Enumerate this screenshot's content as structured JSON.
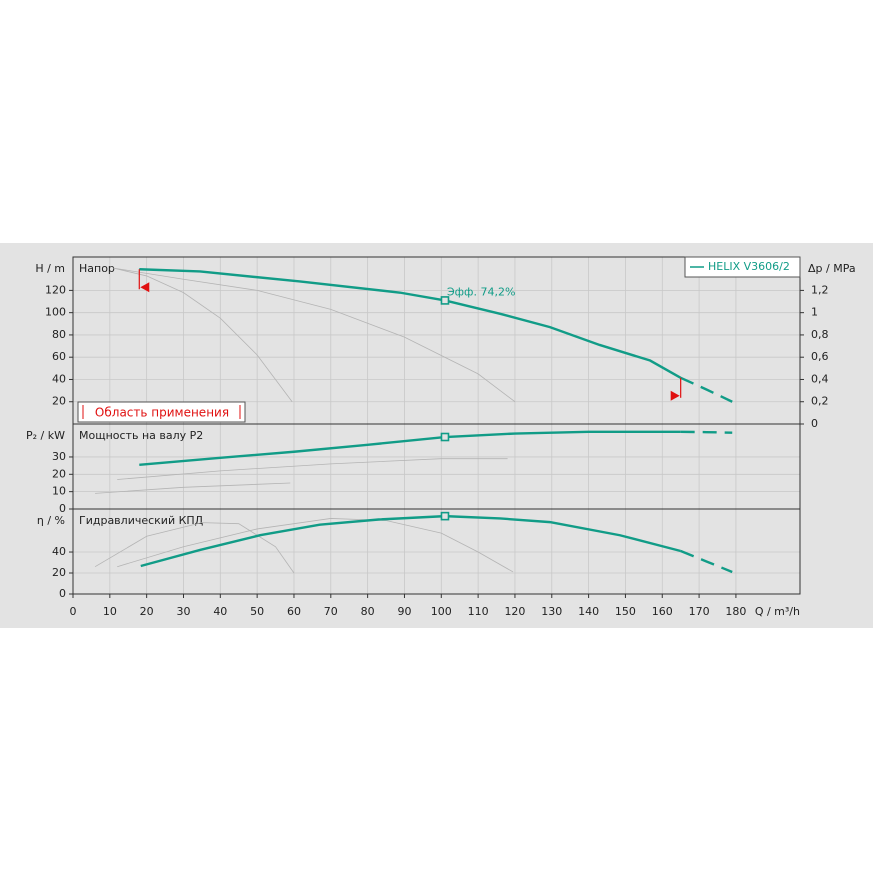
{
  "chart_data": [
    {
      "type": "line",
      "y_label": "H / m",
      "title": "Напор",
      "y2_label": "Δp / MPa",
      "ylim": [
        0,
        150
      ],
      "yticks": [
        20,
        40,
        60,
        80,
        100,
        120
      ],
      "y2lim": [
        0,
        1.5
      ],
      "y2ticks": [
        0,
        {
          "value": 0.2,
          "label": "0,2"
        },
        {
          "value": 0.4,
          "label": "0,4"
        },
        {
          "value": 0.6,
          "label": "0,6"
        },
        {
          "value": 0.8,
          "label": "0,8"
        },
        {
          "value": 1,
          "label": "1"
        },
        {
          "value": 1.2,
          "label": "1,2"
        }
      ],
      "legend": "top-right",
      "grid": true,
      "annotation": "Эфф.  74,2%",
      "duty_point": {
        "x": 101,
        "y": 111
      },
      "range": {
        "label": "Область применения",
        "limits": [
          18,
          165
        ]
      },
      "series": [
        {
          "color": "#b4b4b4",
          "style": "solid",
          "x": [
            11,
            30,
            50,
            70,
            90,
            110,
            120
          ],
          "values": [
            140,
            130,
            120,
            103,
            78,
            45,
            20
          ]
        },
        {
          "color": "#b4b4b4",
          "style": "solid",
          "x": [
            11,
            20,
            30,
            40,
            50,
            59.5
          ],
          "values": [
            140,
            133,
            118,
            95,
            62,
            20
          ]
        },
        {
          "name": "HELIX V3606/2",
          "color": "#119c87",
          "style": "solid",
          "x": [
            18,
            34.5,
            61.6,
            88.8,
            101,
            116,
            129.5,
            143,
            156.7,
            165
          ],
          "values": [
            139,
            137,
            128,
            118,
            111,
            99,
            87,
            71,
            57,
            41.5
          ]
        },
        {
          "color": "#119c87",
          "style": "dashed",
          "x": [
            165,
            172,
            179
          ],
          "values": [
            41.5,
            31,
            20
          ]
        }
      ]
    },
    {
      "type": "line",
      "y_label": "P₂ / kW",
      "title": "Мощность на валу P2",
      "ylim": [
        0,
        49
      ],
      "yticks": [
        0,
        10,
        20,
        30
      ],
      "grid": true,
      "duty_point": {
        "x": 101,
        "y": 41.5
      },
      "series": [
        {
          "color": "#b4b4b4",
          "style": "solid",
          "x": [
            12,
            40,
            70,
            100,
            118
          ],
          "values": [
            17,
            22,
            26,
            29,
            29
          ]
        },
        {
          "color": "#b4b4b4",
          "style": "solid",
          "x": [
            6,
            30,
            59
          ],
          "values": [
            9,
            12.5,
            15
          ]
        },
        {
          "color": "#119c87",
          "style": "solid",
          "x": [
            18,
            40,
            60,
            80,
            101,
            120,
            140,
            165
          ],
          "values": [
            25.5,
            29.5,
            33,
            37,
            41.5,
            43.5,
            44.5,
            44.5
          ]
        },
        {
          "color": "#119c87",
          "style": "dashed",
          "x": [
            165,
            172,
            179
          ],
          "values": [
            44.5,
            44.3,
            44
          ]
        }
      ]
    },
    {
      "type": "line",
      "y_label": "η / %",
      "title": "Гидравлический КПД",
      "ylim": [
        0,
        81
      ],
      "yticks": [
        0,
        20,
        40
      ],
      "grid": true,
      "x_label": "Q / m³/h",
      "xlim": [
        0,
        197.4
      ],
      "xticks": [
        0,
        10,
        20,
        30,
        40,
        50,
        60,
        70,
        80,
        90,
        100,
        110,
        120,
        130,
        140,
        150,
        160,
        170,
        180
      ],
      "duty_point": {
        "x": 101,
        "y": 74.2
      },
      "series": [
        {
          "color": "#b4b4b4",
          "style": "solid",
          "x": [
            12,
            30,
            50,
            70,
            85,
            100,
            110,
            119.5
          ],
          "values": [
            26,
            45,
            62,
            72,
            70,
            58,
            40,
            21
          ]
        },
        {
          "color": "#b4b4b4",
          "style": "solid",
          "x": [
            6,
            20,
            35,
            45,
            55,
            60
          ],
          "values": [
            26,
            55,
            68,
            67,
            45,
            20
          ]
        },
        {
          "color": "#119c87",
          "style": "solid",
          "x": [
            18.4,
            34.5,
            50.8,
            67,
            83,
            101,
            116,
            129.5,
            148.5,
            165
          ],
          "values": [
            26.7,
            42,
            56,
            66,
            71,
            74.2,
            72,
            68.5,
            56,
            41
          ]
        },
        {
          "color": "#119c87",
          "style": "dashed",
          "x": [
            165,
            172,
            179
          ],
          "values": [
            41,
            31,
            21
          ]
        }
      ]
    }
  ]
}
